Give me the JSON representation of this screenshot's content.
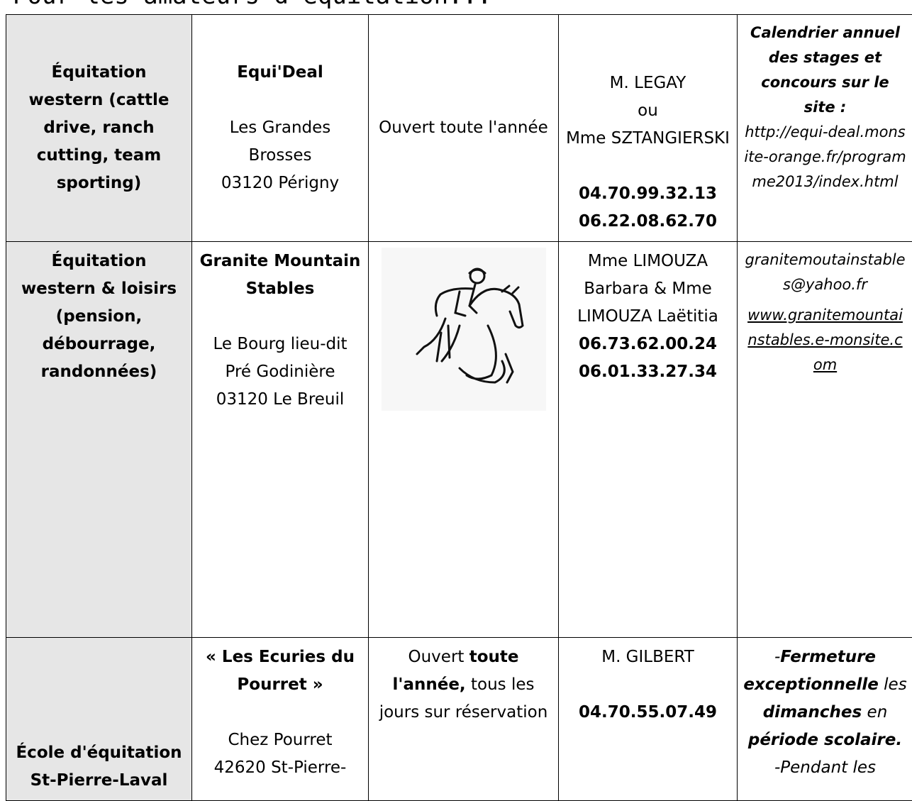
{
  "header": {
    "title": "Pour les amateurs d'équitation..."
  },
  "table": {
    "rows": [
      [
        {
          "lines": [
            "Équitation western (cattle drive, ranch cutting, team sporting)"
          ]
        },
        {
          "lines": [
            "Equi'Deal",
            "Les Grandes Brosses",
            "03120 Périgny"
          ]
        },
        {
          "lines": [
            "Ouvert toute l'année"
          ]
        },
        {
          "lines": [
            "M. LEGAY",
            "ou",
            "Mme SZTANGIERSKI",
            "04.70.99.32.13",
            "06.22.08.62.70"
          ]
        },
        {
          "lines": [
            "Calendrier annuel des stages et concours sur le site :",
            "http://equi-deal.monsite-orange.fr/programme2013/index.html"
          ]
        }
      ],
      [
        {
          "lines": [
            "Équitation western & loisirs (pension, débourrage, randonnées)"
          ]
        },
        {
          "lines": [
            "Granite Mountain Stables",
            "Le Bourg lieu-dit",
            "Pré Godinière",
            "03120 Le Breuil"
          ]
        },
        {
          "lines": []
        },
        {
          "lines": [
            "Mme LIMOUZA Barbara & Mme LIMOUZA Laëtitia",
            "06.73.62.00.24",
            "06.01.33.27.34"
          ]
        },
        {
          "lines": [
            "granitemoutainstables@yahoo.fr",
            "www.granitemountainstables.e-monsite.com"
          ]
        }
      ],
      [
        {
          "lines": [
            "École d'équitation St-Pierre-Laval"
          ]
        },
        {
          "lines": [
            "« Les Ecuries du Pourret »",
            "Chez Pourret",
            "42620 St-Pierre-"
          ]
        },
        {
          "lines": [
            "Ouvert",
            "toute l'année,",
            "tous les jours sur réservation"
          ]
        },
        {
          "lines": [
            "M. GILBERT",
            "04.70.55.07.49"
          ]
        },
        {
          "lines": [
            "-",
            "Fermeture exceptionnelle",
            "les",
            "dimanches",
            "en",
            "période scolaire.",
            "-Pendant les"
          ]
        }
      ]
    ]
  }
}
